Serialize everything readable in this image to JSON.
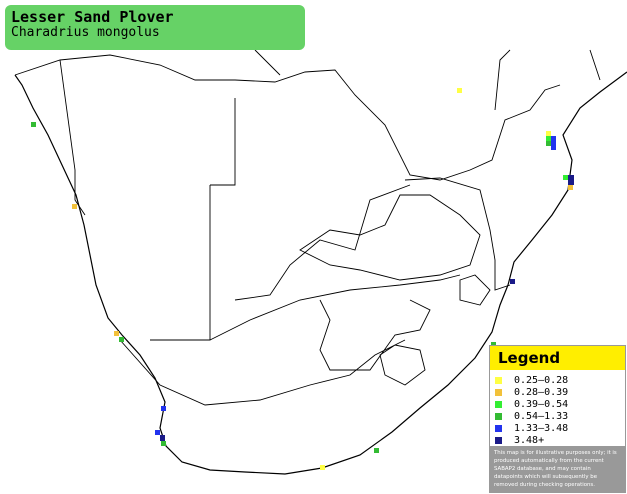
{
  "header": {
    "title": "Lesser Sand Plover",
    "subtitle": "Charadrius mongolus"
  },
  "legend": {
    "title": "Legend",
    "entries": [
      {
        "label": "0.25–0.28",
        "color": "#ffff44"
      },
      {
        "label": "0.28–0.39",
        "color": "#f2c13a"
      },
      {
        "label": "0.39–0.54",
        "color": "#33ee33"
      },
      {
        "label": "0.54–1.33",
        "color": "#33bb33"
      },
      {
        "label": "1.33–3.48",
        "color": "#2233ee"
      },
      {
        "label": "3.48+",
        "color": "#1a1a88"
      }
    ]
  },
  "disclaimer": "This map is for illustrative purposes only; it is produced automatically from the current SABAP2 database, and may contain datapoints which will subsequently be removed during checking operations."
}
